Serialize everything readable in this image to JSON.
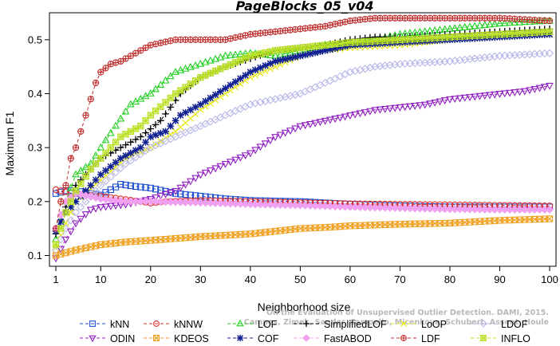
{
  "chart_data": {
    "type": "line",
    "title": "PageBlocks_05_v04",
    "xlabel": "Neighborhood size",
    "ylabel": "Maximum F1",
    "xlim": [
      1,
      100
    ],
    "ylim": [
      0.08,
      0.55
    ],
    "xticks": [
      1,
      10,
      20,
      30,
      40,
      50,
      60,
      70,
      80,
      90,
      100
    ],
    "xtick_labels": [
      "1",
      "10",
      "20",
      "30",
      "40",
      "50",
      "60",
      "70",
      "80",
      "90",
      "100"
    ],
    "yticks": [
      0.1,
      0.2,
      0.3,
      0.4,
      0.5
    ],
    "ytick_labels": [
      "0.1",
      "0.2",
      "0.3",
      "0.4",
      "0.5"
    ],
    "legend_position": "bottom",
    "grid": false,
    "watermark_lines": [
      "Campos, Zimek, Sander, Campello, Micenkova, Schubert, Assent, Houle",
      "On the Evaluation of Unsupervised Outlier Detection. DAMI, 2015."
    ],
    "series": [
      {
        "name": "kNN",
        "color": "#1f4fd0",
        "marker": "square",
        "points": [
          [
            1,
            0.215
          ],
          [
            3,
            0.22
          ],
          [
            5,
            0.22
          ],
          [
            8,
            0.215
          ],
          [
            10,
            0.212
          ],
          [
            14,
            0.232
          ],
          [
            17,
            0.228
          ],
          [
            20,
            0.225
          ],
          [
            25,
            0.215
          ],
          [
            30,
            0.21
          ],
          [
            35,
            0.205
          ],
          [
            40,
            0.202
          ],
          [
            50,
            0.2
          ],
          [
            60,
            0.195
          ],
          [
            70,
            0.192
          ],
          [
            80,
            0.19
          ],
          [
            90,
            0.19
          ],
          [
            100,
            0.19
          ]
        ]
      },
      {
        "name": "kNNW",
        "color": "#e03030",
        "marker": "circle",
        "points": [
          [
            1,
            0.222
          ],
          [
            3,
            0.218
          ],
          [
            6,
            0.213
          ],
          [
            10,
            0.21
          ],
          [
            14,
            0.205
          ],
          [
            18,
            0.2
          ],
          [
            20,
            0.197
          ],
          [
            23,
            0.2
          ],
          [
            30,
            0.202
          ],
          [
            40,
            0.2
          ],
          [
            50,
            0.198
          ],
          [
            60,
            0.196
          ],
          [
            70,
            0.195
          ],
          [
            80,
            0.194
          ],
          [
            90,
            0.193
          ],
          [
            100,
            0.192
          ]
        ]
      },
      {
        "name": "LOF",
        "color": "#22d022",
        "marker": "triangle",
        "points": [
          [
            1,
            0.13
          ],
          [
            3,
            0.2
          ],
          [
            5,
            0.25
          ],
          [
            8,
            0.27
          ],
          [
            10,
            0.3
          ],
          [
            13,
            0.34
          ],
          [
            16,
            0.38
          ],
          [
            20,
            0.4
          ],
          [
            25,
            0.44
          ],
          [
            30,
            0.455
          ],
          [
            35,
            0.47
          ],
          [
            40,
            0.475
          ],
          [
            45,
            0.47
          ],
          [
            50,
            0.48
          ],
          [
            55,
            0.49
          ],
          [
            60,
            0.49
          ],
          [
            65,
            0.5
          ],
          [
            70,
            0.51
          ],
          [
            80,
            0.52
          ],
          [
            90,
            0.53
          ],
          [
            100,
            0.535
          ]
        ]
      },
      {
        "name": "SimplifiedLOF",
        "color": "#000000",
        "marker": "plus",
        "points": [
          [
            1,
            0.14
          ],
          [
            3,
            0.19
          ],
          [
            5,
            0.23
          ],
          [
            8,
            0.26
          ],
          [
            10,
            0.28
          ],
          [
            14,
            0.3
          ],
          [
            18,
            0.32
          ],
          [
            22,
            0.35
          ],
          [
            26,
            0.4
          ],
          [
            30,
            0.43
          ],
          [
            35,
            0.45
          ],
          [
            40,
            0.465
          ],
          [
            45,
            0.48
          ],
          [
            50,
            0.485
          ],
          [
            55,
            0.49
          ],
          [
            60,
            0.5
          ],
          [
            65,
            0.505
          ],
          [
            70,
            0.505
          ],
          [
            80,
            0.51
          ],
          [
            90,
            0.515
          ],
          [
            100,
            0.52
          ]
        ]
      },
      {
        "name": "LoOP",
        "color": "#e8e820",
        "marker": "cross",
        "points": [
          [
            1,
            0.115
          ],
          [
            3,
            0.16
          ],
          [
            5,
            0.2
          ],
          [
            10,
            0.24
          ],
          [
            15,
            0.28
          ],
          [
            20,
            0.3
          ],
          [
            25,
            0.33
          ],
          [
            30,
            0.37
          ],
          [
            35,
            0.4
          ],
          [
            40,
            0.43
          ],
          [
            45,
            0.45
          ],
          [
            50,
            0.47
          ],
          [
            55,
            0.48
          ],
          [
            60,
            0.485
          ],
          [
            70,
            0.49
          ],
          [
            80,
            0.5
          ],
          [
            90,
            0.505
          ],
          [
            100,
            0.51
          ]
        ]
      },
      {
        "name": "LDOF",
        "color": "#b8b8e8",
        "marker": "diamond",
        "points": [
          [
            1,
            0.11
          ],
          [
            3,
            0.15
          ],
          [
            5,
            0.18
          ],
          [
            10,
            0.23
          ],
          [
            15,
            0.27
          ],
          [
            20,
            0.3
          ],
          [
            25,
            0.32
          ],
          [
            30,
            0.34
          ],
          [
            35,
            0.36
          ],
          [
            40,
            0.38
          ],
          [
            45,
            0.39
          ],
          [
            50,
            0.4
          ],
          [
            55,
            0.42
          ],
          [
            60,
            0.44
          ],
          [
            65,
            0.45
          ],
          [
            70,
            0.455
          ],
          [
            80,
            0.46
          ],
          [
            90,
            0.47
          ],
          [
            100,
            0.475
          ]
        ]
      },
      {
        "name": "ODIN",
        "color": "#9020c0",
        "marker": "triangle-down",
        "points": [
          [
            1,
            0.095
          ],
          [
            3,
            0.13
          ],
          [
            5,
            0.16
          ],
          [
            8,
            0.185
          ],
          [
            10,
            0.19
          ],
          [
            15,
            0.195
          ],
          [
            20,
            0.205
          ],
          [
            25,
            0.22
          ],
          [
            30,
            0.25
          ],
          [
            35,
            0.27
          ],
          [
            40,
            0.29
          ],
          [
            45,
            0.32
          ],
          [
            50,
            0.34
          ],
          [
            55,
            0.35
          ],
          [
            60,
            0.36
          ],
          [
            65,
            0.37
          ],
          [
            70,
            0.375
          ],
          [
            75,
            0.38
          ],
          [
            80,
            0.39
          ],
          [
            85,
            0.395
          ],
          [
            90,
            0.4
          ],
          [
            95,
            0.405
          ],
          [
            100,
            0.415
          ]
        ]
      },
      {
        "name": "KDEOS",
        "color": "#f0a020",
        "marker": "square-x",
        "points": [
          [
            1,
            0.1
          ],
          [
            5,
            0.11
          ],
          [
            10,
            0.12
          ],
          [
            15,
            0.125
          ],
          [
            20,
            0.128
          ],
          [
            30,
            0.135
          ],
          [
            40,
            0.14
          ],
          [
            45,
            0.145
          ],
          [
            50,
            0.15
          ],
          [
            55,
            0.152
          ],
          [
            60,
            0.155
          ],
          [
            70,
            0.158
          ],
          [
            80,
            0.16
          ],
          [
            90,
            0.165
          ],
          [
            100,
            0.168
          ]
        ]
      },
      {
        "name": "COF",
        "color": "#102090",
        "marker": "star",
        "points": [
          [
            1,
            0.145
          ],
          [
            3,
            0.18
          ],
          [
            5,
            0.2
          ],
          [
            8,
            0.23
          ],
          [
            10,
            0.25
          ],
          [
            14,
            0.28
          ],
          [
            18,
            0.3
          ],
          [
            20,
            0.32
          ],
          [
            23,
            0.33
          ],
          [
            26,
            0.36
          ],
          [
            30,
            0.38
          ],
          [
            35,
            0.41
          ],
          [
            40,
            0.44
          ],
          [
            45,
            0.46
          ],
          [
            50,
            0.47
          ],
          [
            55,
            0.48
          ],
          [
            60,
            0.49
          ],
          [
            70,
            0.495
          ],
          [
            80,
            0.5
          ],
          [
            90,
            0.505
          ],
          [
            100,
            0.51
          ]
        ]
      },
      {
        "name": "FastABOD",
        "color": "#f0a0f0",
        "marker": "diamond-filled",
        "points": [
          [
            1,
            0.15
          ],
          [
            3,
            0.2
          ],
          [
            5,
            0.215
          ],
          [
            10,
            0.205
          ],
          [
            15,
            0.2
          ],
          [
            20,
            0.2
          ],
          [
            30,
            0.198
          ],
          [
            40,
            0.195
          ],
          [
            50,
            0.193
          ],
          [
            60,
            0.19
          ],
          [
            70,
            0.188
          ],
          [
            80,
            0.186
          ],
          [
            90,
            0.185
          ],
          [
            100,
            0.185
          ]
        ]
      },
      {
        "name": "LDF",
        "color": "#c03030",
        "marker": "circle-plus",
        "points": [
          [
            1,
            0.15
          ],
          [
            2,
            0.2
          ],
          [
            3,
            0.23
          ],
          [
            4,
            0.28
          ],
          [
            5,
            0.3
          ],
          [
            6,
            0.33
          ],
          [
            7,
            0.36
          ],
          [
            8,
            0.39
          ],
          [
            9,
            0.42
          ],
          [
            10,
            0.44
          ],
          [
            12,
            0.455
          ],
          [
            14,
            0.46
          ],
          [
            16,
            0.47
          ],
          [
            18,
            0.48
          ],
          [
            20,
            0.49
          ],
          [
            25,
            0.5
          ],
          [
            30,
            0.5
          ],
          [
            35,
            0.5
          ],
          [
            40,
            0.51
          ],
          [
            45,
            0.515
          ],
          [
            50,
            0.52
          ],
          [
            55,
            0.525
          ],
          [
            60,
            0.535
          ],
          [
            65,
            0.54
          ],
          [
            70,
            0.54
          ],
          [
            80,
            0.54
          ],
          [
            90,
            0.54
          ],
          [
            100,
            0.535
          ]
        ]
      },
      {
        "name": "INFLO",
        "color": "#b8e020",
        "marker": "square-star",
        "points": [
          [
            1,
            0.12
          ],
          [
            3,
            0.18
          ],
          [
            5,
            0.22
          ],
          [
            8,
            0.26
          ],
          [
            10,
            0.28
          ],
          [
            14,
            0.32
          ],
          [
            18,
            0.34
          ],
          [
            20,
            0.36
          ],
          [
            25,
            0.4
          ],
          [
            30,
            0.43
          ],
          [
            35,
            0.45
          ],
          [
            40,
            0.47
          ],
          [
            45,
            0.48
          ],
          [
            50,
            0.485
          ],
          [
            55,
            0.49
          ],
          [
            60,
            0.495
          ],
          [
            70,
            0.5
          ],
          [
            80,
            0.505
          ],
          [
            90,
            0.51
          ],
          [
            100,
            0.515
          ]
        ]
      }
    ]
  }
}
